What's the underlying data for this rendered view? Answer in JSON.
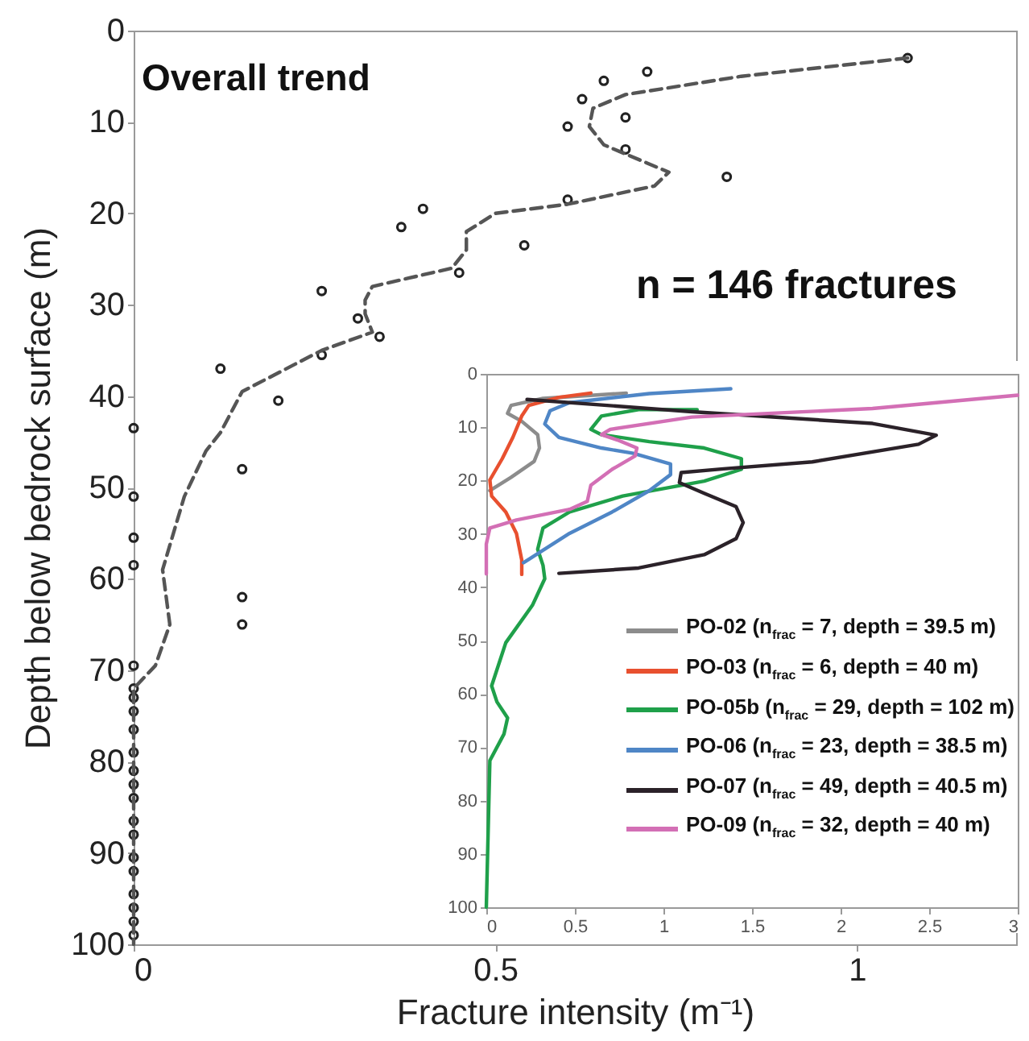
{
  "chart_data": [
    {
      "type": "scatter",
      "xlabel": "Fracture intensity (m⁻¹)",
      "ylabel": "Depth below bedrock surface (m)",
      "annotations": [
        "Overall trend",
        "n = 146 fractures"
      ],
      "xlim": [
        0,
        1.22
      ],
      "xticks": [
        0,
        0.5,
        1
      ],
      "ylim": [
        100,
        0
      ],
      "yticks": [
        0,
        10,
        20,
        30,
        40,
        50,
        60,
        70,
        80,
        90,
        100
      ],
      "series": [
        {
          "marker": "circle",
          "color": "#222222",
          "x": [
            1.07,
            0.71,
            0.65,
            0.62,
            0.68,
            0.6,
            0.68,
            0.82,
            0.6,
            0.4,
            0.37,
            0.54,
            0.45,
            0.26,
            0.31,
            0.34,
            0.26,
            0.12,
            0.2,
            0,
            0.15,
            0,
            0,
            0,
            0.15,
            0.15,
            0,
            0,
            0,
            0,
            0,
            0,
            0,
            0,
            0,
            0,
            0,
            0,
            0,
            0,
            0,
            0,
            0
          ],
          "values": [
            3,
            4.5,
            5.5,
            7.5,
            9.5,
            10.5,
            13,
            16,
            18.5,
            19.5,
            21.5,
            23.5,
            26.5,
            28.5,
            31.5,
            33.5,
            35.5,
            37,
            40.5,
            43.5,
            48,
            51,
            55.5,
            58.5,
            62,
            65,
            69.5,
            72,
            73,
            74.5,
            76.5,
            79,
            81,
            82.5,
            84,
            86.5,
            88,
            90.5,
            92,
            94.5,
            96,
            97.5,
            99
          ]
        },
        {
          "type": "line",
          "color": "#555555",
          "line_style": "dashed",
          "x": [
            1.07,
            0.84,
            0.68,
            0.635,
            0.63,
            0.65,
            0.71,
            0.74,
            0.72,
            0.6,
            0.5,
            0.46,
            0.46,
            0.44,
            0.33,
            0.32,
            0.32,
            0.33,
            0.26,
            0.15,
            0.12,
            0.1,
            0.07,
            0.04,
            0.05,
            0.03,
            0,
            0
          ],
          "values": [
            3,
            5,
            7,
            8.5,
            10.5,
            12.5,
            14.5,
            15.5,
            17,
            19,
            20,
            22,
            24,
            26,
            28,
            29.5,
            31,
            33,
            35,
            39.5,
            44,
            46,
            51,
            59,
            65,
            69.5,
            72,
            100
          ]
        }
      ]
    },
    {
      "type": "line",
      "xlim": [
        0,
        3
      ],
      "xticks": [
        0,
        0.5,
        1,
        1.5,
        2,
        2.5,
        3
      ],
      "ylim": [
        100,
        0
      ],
      "yticks": [
        0,
        10,
        20,
        30,
        40,
        50,
        60,
        70,
        80,
        90,
        100
      ],
      "legend": "bottom right",
      "series": [
        {
          "name": "PO-02 (n$_{frac}$ = 7, depth = 39.5 m)",
          "color": "#8c8c8c",
          "x": [
            0.79,
            0.32,
            0.14,
            0.12,
            0.2,
            0.29,
            0.3,
            0.27,
            0.14,
            0.02
          ],
          "values": [
            3.6,
            4.6,
            5.9,
            7.4,
            8.9,
            11.4,
            13.9,
            16.4,
            19.4,
            21.9
          ]
        },
        {
          "name": "PO-03 (n$_{frac}$ = 6, depth = 40 m)",
          "color": "#e8502f",
          "x": [
            0.59,
            0.41,
            0.24,
            0.2,
            0.15,
            0.09,
            0.02,
            0.03,
            0.11,
            0.17,
            0.2,
            0.2
          ],
          "values": [
            3.6,
            4.4,
            5.9,
            7.9,
            11.9,
            15.9,
            19.9,
            22.9,
            25.9,
            29.9,
            34.9,
            37.6
          ]
        },
        {
          "name": "PO-05b (n$_{frac}$ = 29, depth = 102 m)",
          "color": "#1fa04a",
          "x": [
            1.19,
            0.86,
            0.65,
            0.59,
            0.65,
            0.92,
            1.23,
            1.44,
            1.44,
            1.23,
            0.77,
            0.47,
            0.32,
            0.29,
            0.32,
            0.33,
            0.26,
            0.11,
            0.03,
            0.06,
            0.12,
            0.1,
            0.02,
            0
          ],
          "values": [
            6.7,
            6.7,
            7.9,
            10.4,
            11.4,
            12.7,
            13.9,
            15.9,
            17.9,
            20.1,
            22.9,
            25.9,
            28.9,
            32.9,
            35.9,
            38.4,
            43.4,
            50.4,
            58.5,
            61.5,
            64.5,
            67.5,
            72.5,
            100
          ]
        },
        {
          "name": "PO-06 (n$_{frac}$ = 23, depth = 38.5 m)",
          "color": "#4f86c6",
          "x": [
            1.38,
            0.92,
            0.47,
            0.36,
            0.33,
            0.41,
            0.65,
            0.83,
            1.04,
            1.04,
            0.92,
            0.71,
            0.47,
            0.21
          ],
          "values": [
            2.8,
            3.7,
            5.4,
            6.9,
            9.4,
            11.9,
            13.9,
            14.9,
            16.9,
            18.9,
            21.9,
            25.9,
            29.9,
            35.4
          ]
        },
        {
          "name": "PO-07 (n$_{frac}$ = 49, depth = 40.5 m)",
          "color": "#2b2229",
          "x": [
            0.23,
            1.16,
            2.18,
            2.54,
            2.44,
            1.84,
            1.34,
            1.1,
            1.09,
            1.23,
            1.41,
            1.45,
            1.41,
            1.23,
            0.86,
            0.41
          ],
          "values": [
            4.8,
            7.1,
            9.3,
            11.5,
            13.2,
            16.5,
            17.8,
            18.5,
            20.4,
            22.4,
            24.9,
            27.9,
            30.9,
            33.9,
            36.4,
            37.4
          ]
        },
        {
          "name": "PO-09 (n$_{frac}$ = 32, depth = 40 m)",
          "color": "#d36fb5",
          "x": [
            3,
            2.18,
            1.16,
            0.7,
            0.65,
            0.74,
            0.85,
            0.84,
            0.71,
            0.59,
            0.57,
            0.47,
            0.17,
            0.02,
            0,
            0
          ],
          "values": [
            4,
            6.5,
            8.1,
            10.4,
            11.4,
            12.4,
            13.9,
            15.4,
            17.9,
            20.9,
            23.9,
            25.4,
            27.4,
            28.9,
            31.9,
            37.5
          ]
        }
      ]
    }
  ]
}
